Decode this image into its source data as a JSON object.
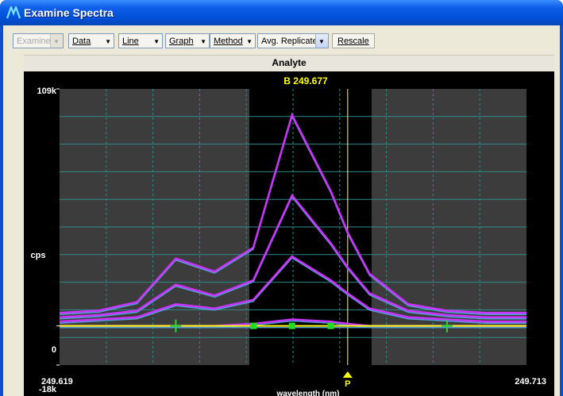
{
  "window": {
    "title": "Examine Spectra"
  },
  "toolbar": {
    "examine": "Examine",
    "data": "Data",
    "line": "Line",
    "graph": "Graph",
    "method": "Method",
    "replicate": "Avg. Replicate",
    "rescale": "Rescale"
  },
  "panel": {
    "title": "Analyte"
  },
  "chart_data": {
    "type": "line",
    "title": "B 249.677",
    "xlabel": "wavelength (nm)",
    "ylabel": "cps",
    "x_ticks": [
      "249.619",
      "249.713"
    ],
    "y_ticks": [
      "109k",
      "0",
      "-18k"
    ],
    "xlim": [
      249.619,
      249.713
    ],
    "ylim": [
      -18000,
      109000
    ],
    "peak_marker": "P",
    "peak_x": 249.677,
    "grid": true,
    "x": [
      249.619,
      249.6268,
      249.6346,
      249.6424,
      249.6502,
      249.658,
      249.6658,
      249.6736,
      249.677,
      249.6814,
      249.6892,
      249.697,
      249.7048,
      249.7126,
      249.713
    ],
    "series": [
      {
        "color": "#cc33ff",
        "values": [
          6000,
          7000,
          11000,
          31000,
          25000,
          36000,
          97000,
          62000,
          43000,
          24000,
          10000,
          7000,
          6000,
          6000,
          6000
        ]
      },
      {
        "color": "#cc33ff",
        "values": [
          4000,
          5000,
          7000,
          19000,
          14000,
          21000,
          60000,
          38000,
          27000,
          15000,
          7000,
          5000,
          4000,
          4000,
          4000
        ]
      },
      {
        "color": "#cc33ff",
        "values": [
          2000,
          3000,
          4000,
          10000,
          8000,
          12000,
          32000,
          21000,
          15000,
          8000,
          4000,
          3000,
          2000,
          2000,
          2000
        ]
      },
      {
        "color": "#cc33ff",
        "values": [
          0,
          0,
          0,
          0,
          0,
          1000,
          3000,
          2000,
          1000,
          0,
          0,
          0,
          0,
          0,
          0
        ]
      },
      {
        "color": "#ffff00",
        "values": [
          0,
          0,
          0,
          0,
          0,
          0,
          0,
          0,
          0,
          0,
          0,
          0,
          0,
          0,
          0
        ]
      }
    ],
    "markers": [
      {
        "shape": "cross",
        "x": 249.6424,
        "y": 0
      },
      {
        "shape": "square",
        "x": 249.658,
        "y": 0
      },
      {
        "shape": "square",
        "x": 249.6658,
        "y": 0
      },
      {
        "shape": "square",
        "x": 249.6736,
        "y": 0
      },
      {
        "shape": "cross",
        "x": 249.697,
        "y": 0
      }
    ]
  }
}
